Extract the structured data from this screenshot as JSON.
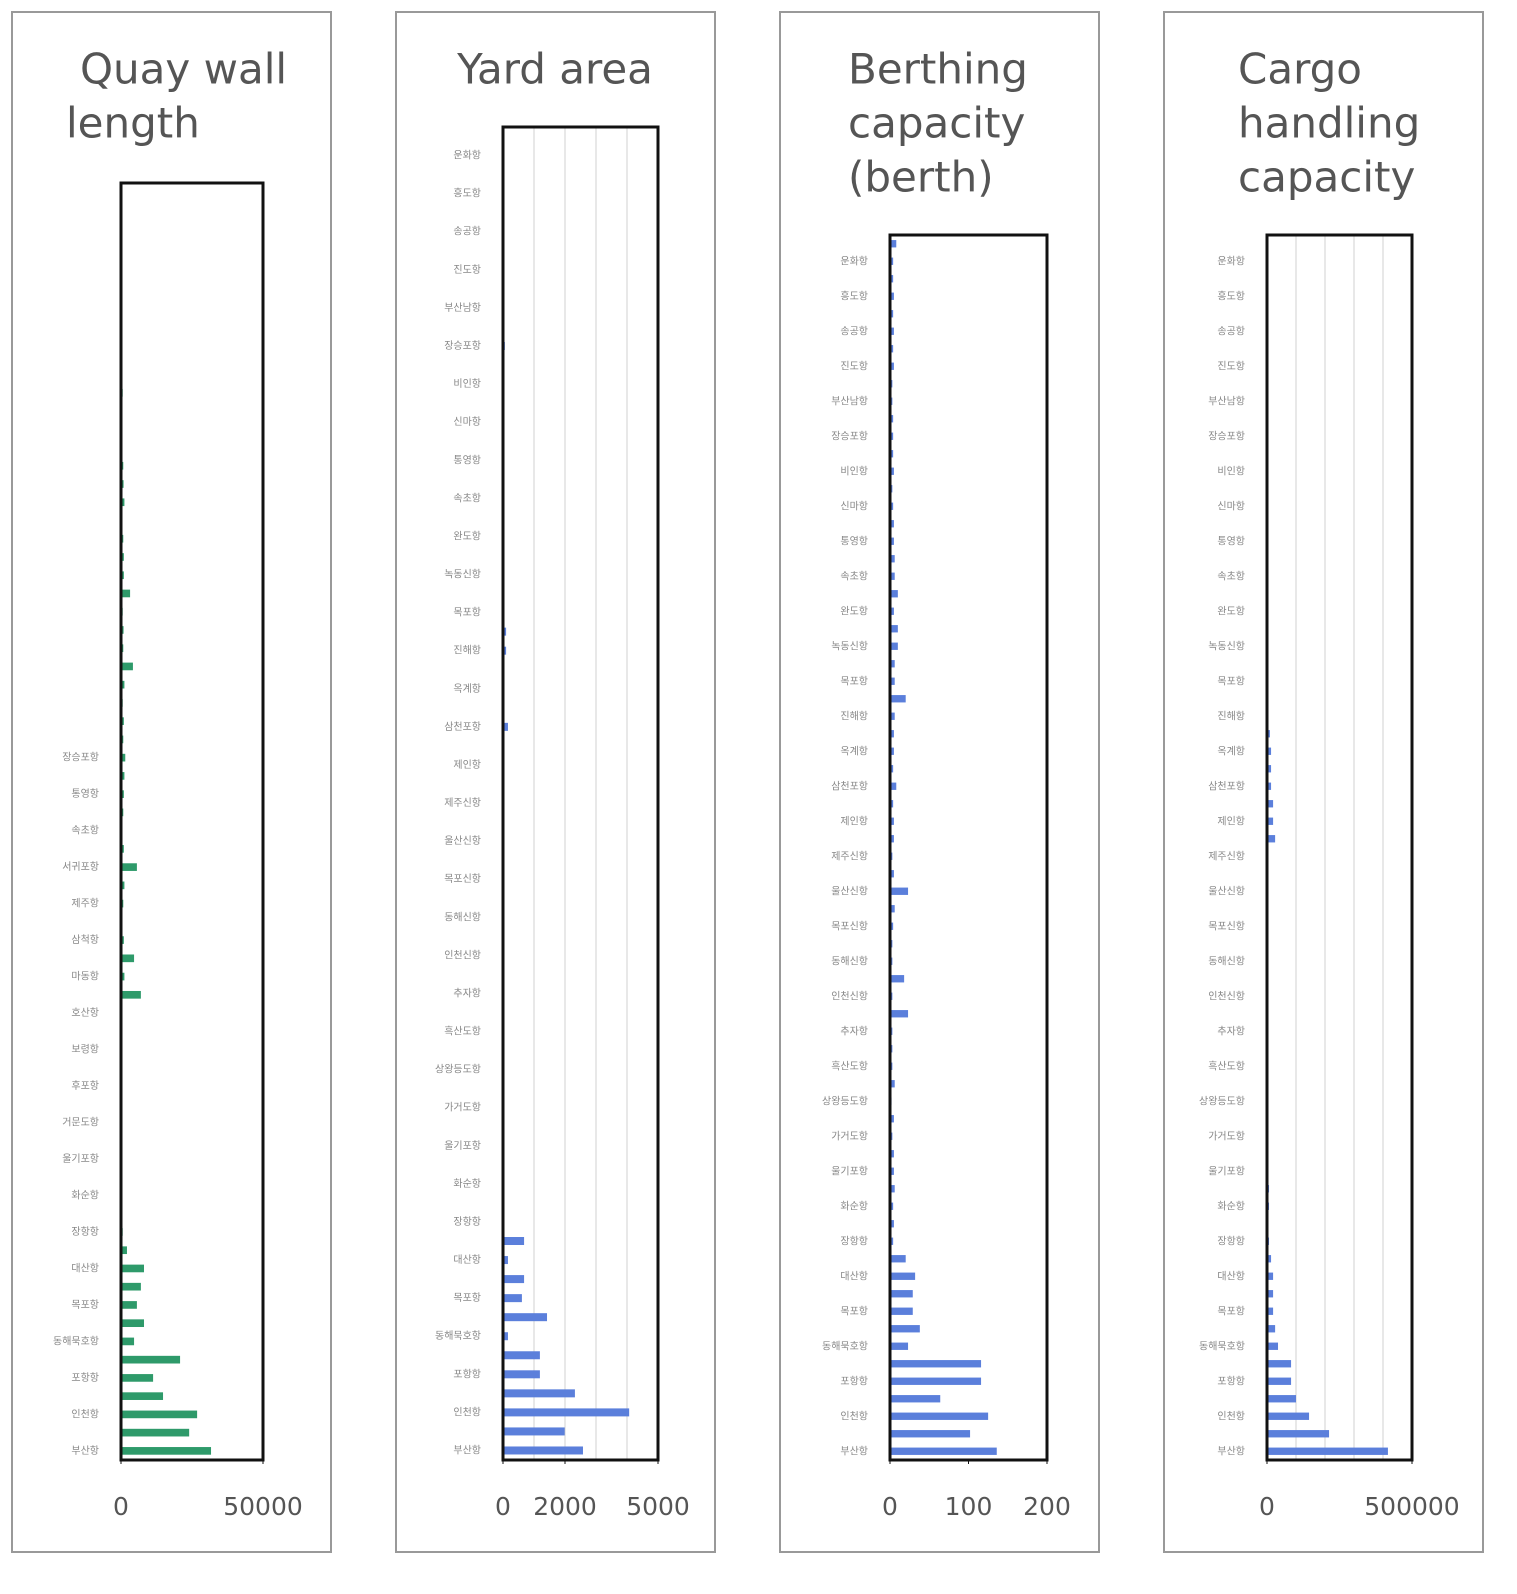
{
  "chart_data": [
    {
      "type": "bar",
      "orientation": "horizontal",
      "title": [
        "Quay wall",
        "length"
      ],
      "color": "#2e9a6a",
      "categories": [
        null,
        null,
        null,
        null,
        null,
        null,
        null,
        null,
        null,
        null,
        null,
        null,
        null,
        null,
        null,
        null,
        null,
        null,
        null,
        null,
        null,
        null,
        null,
        null,
        null,
        null,
        null,
        null,
        null,
        null,
        null,
        "장승포항",
        null,
        "통영항",
        null,
        "속초항",
        null,
        "서귀포항",
        null,
        "제주항",
        null,
        "삼척항",
        null,
        "마동항",
        null,
        "호산항",
        null,
        "보령항",
        null,
        "후포항",
        null,
        "거문도항",
        null,
        "울기포항",
        null,
        "화순항",
        null,
        "장항항",
        null,
        "대산항",
        null,
        "목포항",
        null,
        "동해묵호항",
        null,
        "포항항",
        null,
        "인천항",
        null,
        "부산항"
      ],
      "values": [
        300,
        200,
        300,
        200,
        300,
        200,
        300,
        200,
        300,
        400,
        500,
        600,
        300,
        400,
        500,
        800,
        900,
        1200,
        500,
        800,
        1000,
        1000,
        3200,
        600,
        900,
        800,
        4200,
        1200,
        600,
        1000,
        800,
        1500,
        1200,
        1000,
        800,
        500,
        1000,
        5600,
        1200,
        800,
        500,
        1000,
        4600,
        1200,
        7000,
        300,
        300,
        200,
        300,
        200,
        300,
        400,
        500,
        300,
        500,
        400,
        300,
        600,
        2100,
        8100,
        7000,
        5600,
        8100,
        4600,
        20800,
        11300,
        14800,
        26800,
        24000,
        31700
      ],
      "xlim": [
        0,
        50000
      ],
      "xticks": [
        0,
        50000
      ]
    },
    {
      "type": "bar",
      "orientation": "horizontal",
      "title": [
        "Yard area"
      ],
      "color": "#5b7fdb",
      "categories": [
        null,
        "운화항",
        null,
        "흥도항",
        null,
        "송공항",
        null,
        "진도항",
        null,
        "부산남항",
        null,
        "장승포항",
        null,
        "비인항",
        null,
        "신마항",
        null,
        "통영항",
        null,
        "속초항",
        null,
        "완도항",
        null,
        "녹동신항",
        null,
        "목포항",
        null,
        "진해항",
        null,
        "옥계항",
        null,
        "삼천포항",
        null,
        "제인항",
        null,
        "제주신항",
        null,
        "울산신항",
        null,
        "목포신항",
        null,
        "동해신항",
        null,
        "인천신항",
        null,
        "추자항",
        null,
        "흑산도항",
        null,
        "상왕등도항",
        null,
        "가거도항",
        null,
        "울기포항",
        null,
        "화순항",
        null,
        "장항항",
        null,
        "대산항",
        null,
        "목포항",
        null,
        "동해묵호항",
        null,
        "포항항",
        null,
        "인천항",
        null,
        "부산항"
      ],
      "values": [
        20,
        20,
        20,
        20,
        20,
        30,
        20,
        20,
        20,
        20,
        20,
        60,
        20,
        20,
        20,
        20,
        20,
        30,
        20,
        20,
        30,
        20,
        20,
        20,
        20,
        30,
        100,
        100,
        20,
        20,
        20,
        160,
        20,
        20,
        20,
        20,
        20,
        20,
        20,
        20,
        20,
        20,
        20,
        20,
        20,
        20,
        20,
        20,
        20,
        20,
        20,
        20,
        20,
        20,
        20,
        20,
        20,
        30,
        680,
        160,
        680,
        610,
        1420,
        160,
        1190,
        1190,
        2320,
        4070,
        1990,
        2580
      ],
      "xlim": [
        0,
        5000
      ],
      "xticks": [
        0,
        2000,
        5000
      ],
      "xgrid": [
        0,
        1000,
        2000,
        3000,
        4000,
        5000
      ]
    },
    {
      "type": "bar",
      "orientation": "horizontal",
      "title": [
        "Berthing",
        "capacity",
        "(berth)"
      ],
      "color": "#5b7fdb",
      "categories": [
        null,
        "운화항",
        null,
        "흥도항",
        null,
        "송공항",
        null,
        "진도항",
        null,
        "부산남항",
        null,
        "장승포항",
        null,
        "비인항",
        null,
        "신마항",
        null,
        "통영항",
        null,
        "속초항",
        null,
        "완도항",
        null,
        "녹동신항",
        null,
        "목포항",
        null,
        "진해항",
        null,
        "옥계항",
        null,
        "삼천포항",
        null,
        "제인항",
        null,
        "제주신항",
        null,
        "울산신항",
        null,
        "목포신항",
        null,
        "동해신항",
        null,
        "인천신항",
        null,
        "추자항",
        null,
        "흑산도항",
        null,
        "상왕등도항",
        null,
        "가거도항",
        null,
        "울기포항",
        null,
        "화순항",
        null,
        "장항항",
        null,
        "대산항",
        null,
        "목포항",
        null,
        "동해묵호항",
        null,
        "포항항",
        null,
        "인천항",
        null,
        "부산항"
      ],
      "values": [
        8,
        4,
        4,
        5,
        4,
        5,
        4,
        5,
        3,
        3,
        4,
        4,
        4,
        5,
        3,
        4,
        5,
        5,
        6,
        6,
        10,
        5,
        10,
        10,
        6,
        6,
        20,
        6,
        5,
        5,
        4,
        8,
        4,
        5,
        5,
        3,
        5,
        23,
        6,
        4,
        3,
        3,
        18,
        3,
        23,
        3,
        3,
        3,
        6,
        2,
        5,
        3,
        5,
        5,
        6,
        4,
        5,
        4,
        20,
        32,
        29,
        29,
        38,
        23,
        116,
        116,
        64,
        125,
        102,
        136
      ],
      "xlim": [
        0,
        200
      ],
      "xticks": [
        0,
        100,
        200
      ]
    },
    {
      "type": "bar",
      "orientation": "horizontal",
      "title": [
        "Cargo",
        "handling",
        "capacity"
      ],
      "color": "#5b7fdb",
      "categories": [
        null,
        "운화항",
        null,
        "흥도항",
        null,
        "송공항",
        null,
        "진도항",
        null,
        "부산남항",
        null,
        "장승포항",
        null,
        "비인항",
        null,
        "신마항",
        null,
        "통영항",
        null,
        "속초항",
        null,
        "완도항",
        null,
        "녹동신항",
        null,
        "목포항",
        null,
        "진해항",
        null,
        "옥계항",
        null,
        "삼천포항",
        null,
        "제인항",
        null,
        "제주신항",
        null,
        "울산신항",
        null,
        "목포신항",
        null,
        "동해신항",
        null,
        "인천신항",
        null,
        "추자항",
        null,
        "흑산도항",
        null,
        "상왕등도항",
        null,
        "가거도항",
        null,
        "울기포항",
        null,
        "화순항",
        null,
        "장항항",
        null,
        "대산항",
        null,
        "목포항",
        null,
        "동해묵호항",
        null,
        "포항항",
        null,
        "인천항",
        null,
        "부산항"
      ],
      "values": [
        0,
        0,
        0,
        0,
        0,
        0,
        0,
        0,
        0,
        0,
        0,
        0,
        0,
        0,
        0,
        0,
        0,
        5000,
        5000,
        5000,
        5000,
        5000,
        5000,
        5000,
        5000,
        5000,
        5000,
        5000,
        10000,
        14000,
        14000,
        14000,
        21000,
        21000,
        28000,
        0,
        0,
        0,
        0,
        0,
        0,
        0,
        0,
        0,
        0,
        0,
        0,
        0,
        0,
        0,
        0,
        0,
        0,
        0,
        7000,
        7000,
        3000,
        7000,
        14000,
        21000,
        21000,
        21000,
        28000,
        38000,
        83000,
        83000,
        100000,
        145000,
        214000,
        417000
      ],
      "xlim": [
        0,
        500000
      ],
      "xticks": [
        0,
        500000
      ],
      "xgrid": [
        0,
        100000,
        200000,
        300000,
        400000,
        500000
      ]
    }
  ]
}
